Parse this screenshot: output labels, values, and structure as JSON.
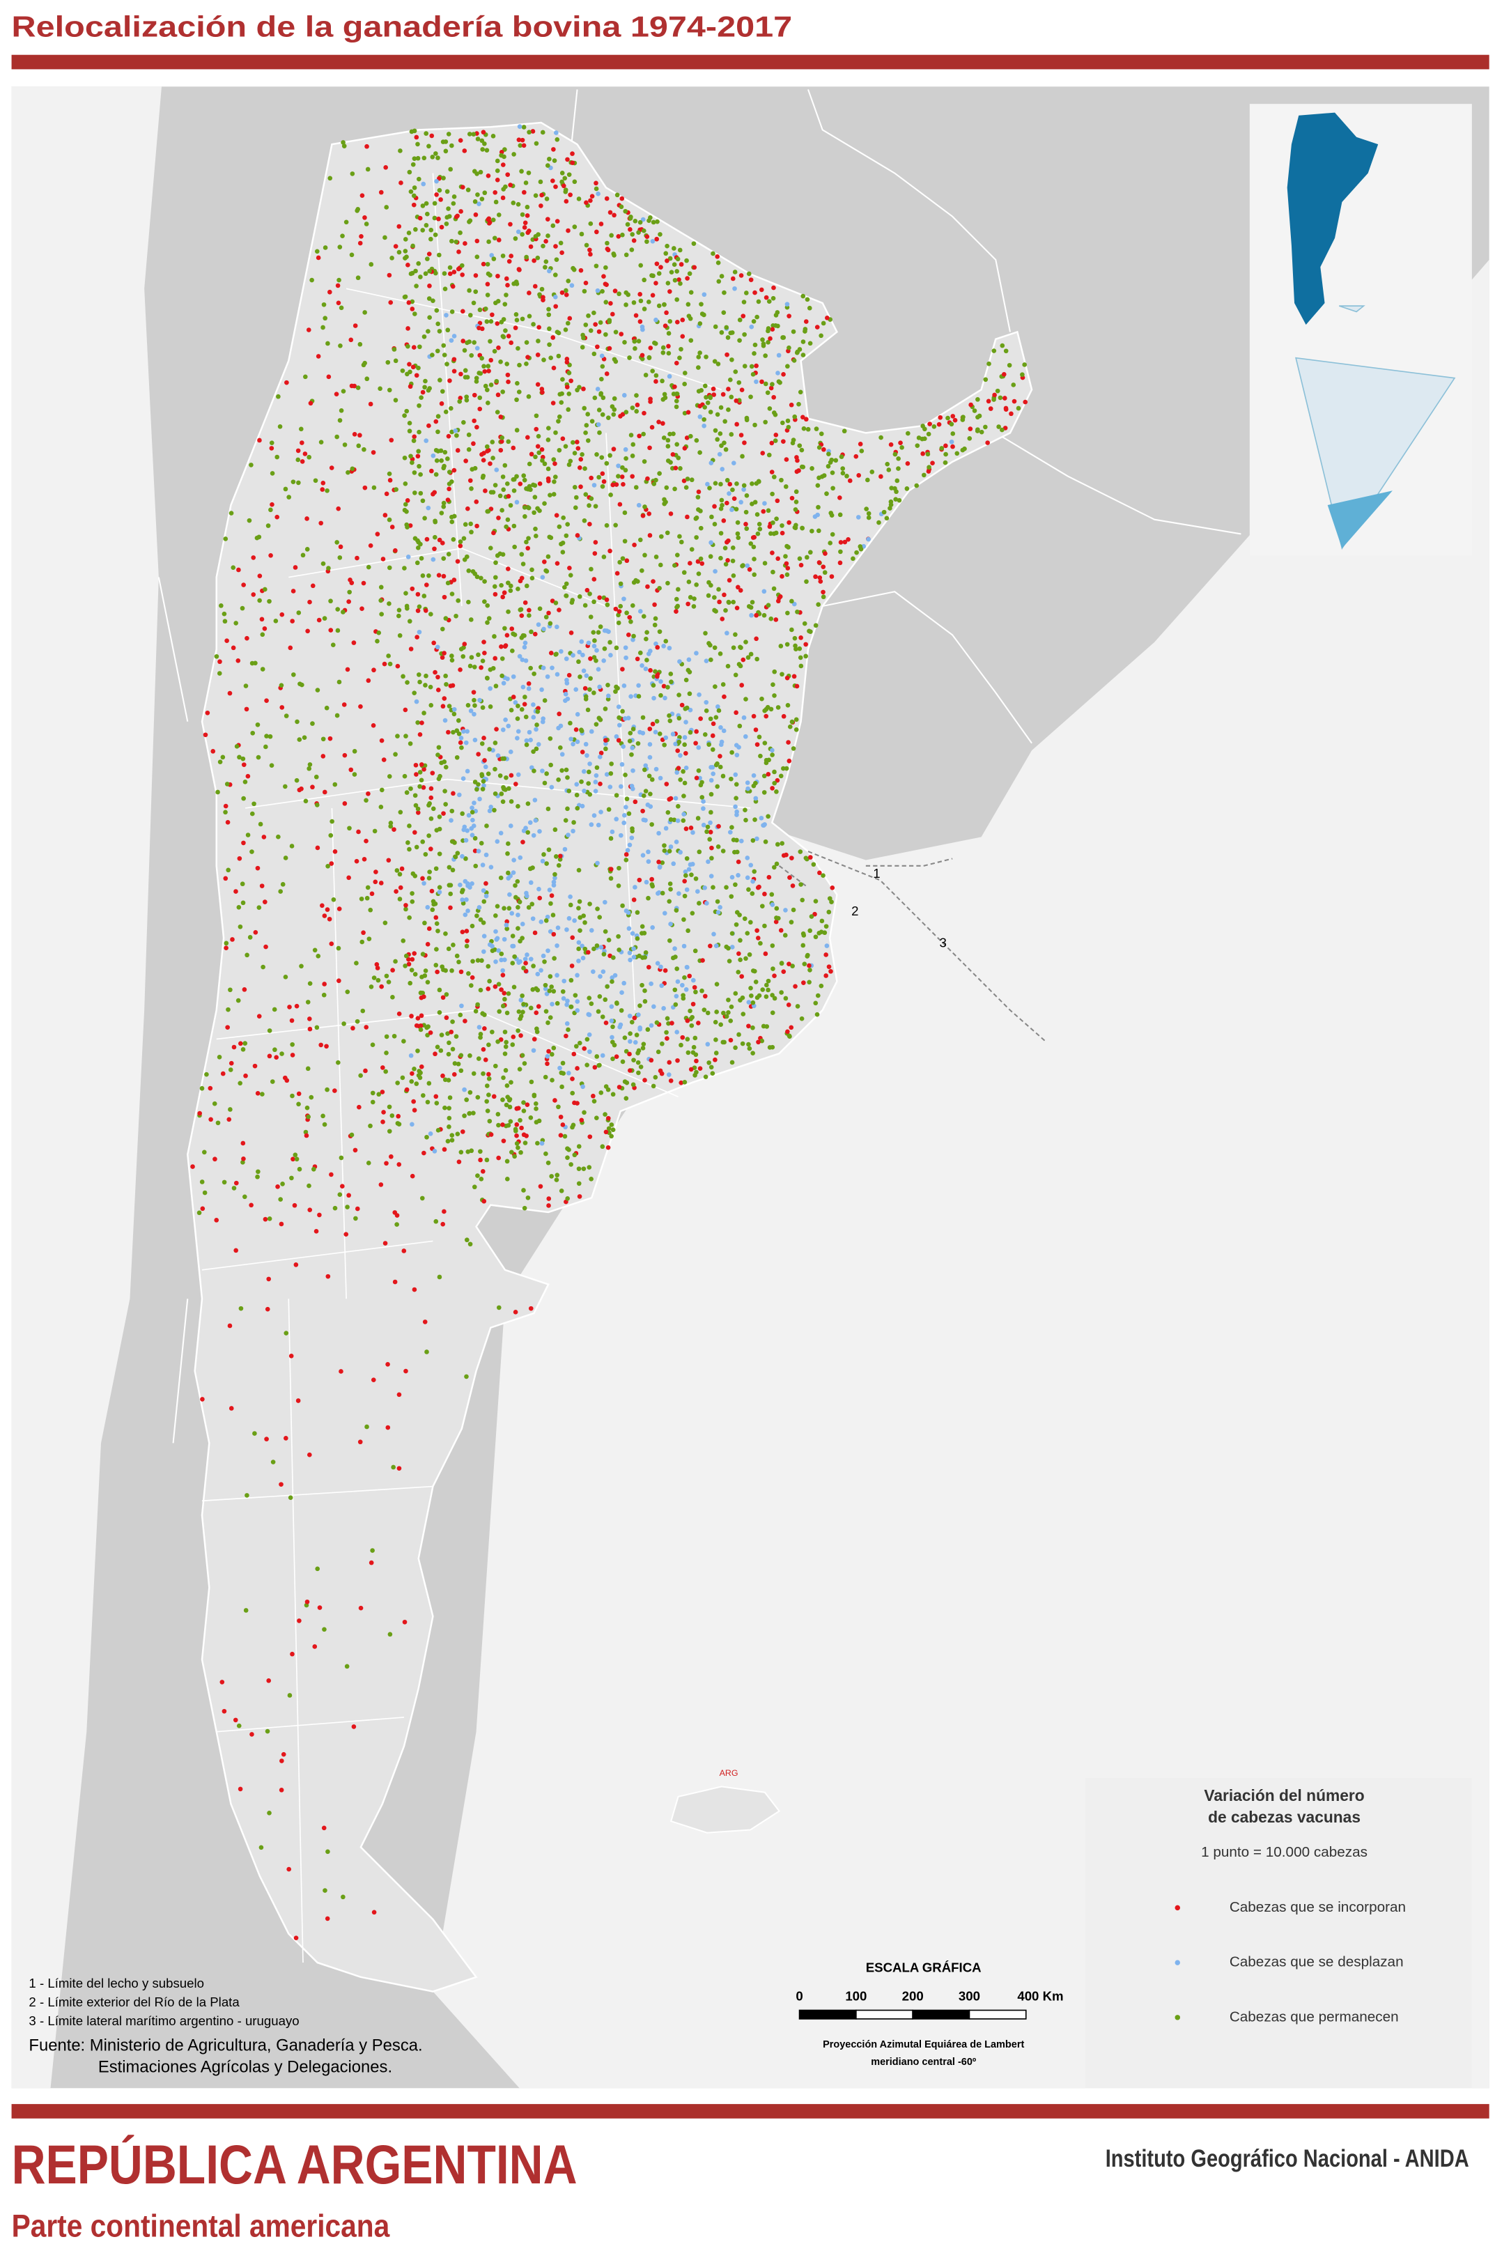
{
  "header": {
    "title": "Relocalización de la ganadería bovina 1974-2017"
  },
  "map": {
    "place_label": "ARG",
    "limit_markers": [
      "1",
      "2",
      "3"
    ]
  },
  "legend": {
    "title_lines": [
      "Variación del número",
      "de cabezas vacunas"
    ],
    "unit": "1 punto = 10.000 cabezas",
    "items": [
      {
        "label": "Cabezas que se incorporan",
        "color": "#e3161b"
      },
      {
        "label": "Cabezas que se desplazan",
        "color": "#7fb3ee"
      },
      {
        "label": "Cabezas que permanecen",
        "color": "#6a9f16"
      }
    ]
  },
  "scale": {
    "title": "ESCALA GRÁFICA",
    "ticks": [
      "0",
      "100",
      "200",
      "300",
      "400 Km"
    ],
    "projection": [
      "Proyección Azimutal Equiárea de Lambert",
      "meridiano central -60º"
    ]
  },
  "notes": [
    "1 - Límite del lecho y subsuelo",
    "2 - Límite exterior del Río de la Plata",
    "3 - Límite lateral marítimo argentino - uruguayo"
  ],
  "source": [
    "Fuente: Ministerio de Agricultura, Ganadería y Pesca.",
    "Estimaciones Agrícolas y Delegaciones."
  ],
  "footer": {
    "title": "REPÚBLICA ARGENTINA",
    "subtitle": "Parte continental americana",
    "institute": "Instituto Geográfico Nacional - ANIDA"
  }
}
